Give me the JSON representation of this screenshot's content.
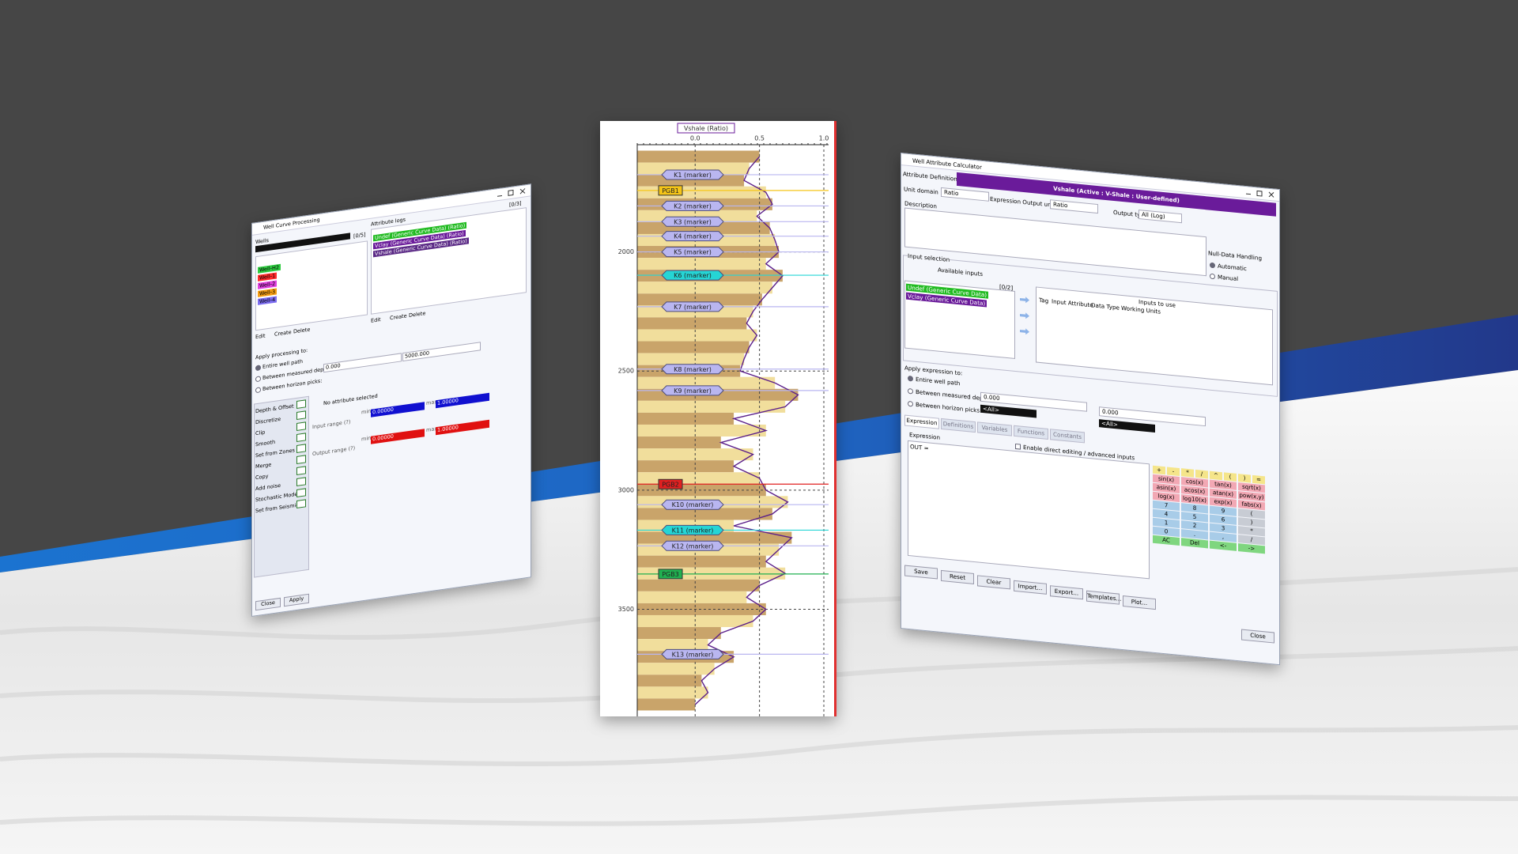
{
  "left_window": {
    "title": "Well Curve Processing",
    "wells_label": "Wells",
    "wells_count": "[0/5]",
    "wells": [
      {
        "name": "Well-H2",
        "color": "#2ecc40"
      },
      {
        "name": "Well-1",
        "color": "#ff2a2a"
      },
      {
        "name": "Well-2",
        "color": "#e040e0"
      },
      {
        "name": "Well-3",
        "color": "#f39c12"
      },
      {
        "name": "Well-4",
        "color": "#7b6cf0"
      }
    ],
    "logs_label": "Attribute logs",
    "logs_count": "[0/3]",
    "logs": [
      {
        "name": "Undef (Generic Curve Data) (Ratio)",
        "color": "#22bb22"
      },
      {
        "name": "Vclay (Generic Curve Data) (Ratio)",
        "color": "#6a1b9a"
      },
      {
        "name": "Vshale (Generic Curve Data) (Ratio)",
        "color": "#5b2a86"
      }
    ],
    "list_buttons": [
      "Edit",
      "Create",
      "Delete"
    ],
    "apply_label": "Apply processing to:",
    "options": [
      "Entire well path",
      "Between measured depths: (m)",
      "Between horizon picks:"
    ],
    "depth_from": "0.000",
    "depth_to": "5000.000",
    "operations": [
      "Depth & Offset",
      "Discretize",
      "Clip",
      "Smooth",
      "Set from Zones",
      "Merge",
      "Copy",
      "Add noise",
      "Stochastic Model",
      "Set from Seismic"
    ],
    "no_attribute": "No attribute selected",
    "input_range": "Input range (?)",
    "output_range": "Output range (?)",
    "min_label": "min",
    "max_label": "max",
    "min_value": "0.00000",
    "max_value": "1.00000",
    "footer": [
      "Close",
      "Apply"
    ]
  },
  "well_log": {
    "title": "Vshale (Ratio)",
    "xlim": [
      -0.45,
      1.0
    ],
    "xticks": [
      {
        "value": 0,
        "label": "0.0"
      },
      0.5,
      {
        "value": 1,
        "label": "1.0"
      }
    ],
    "ylim": [
      1550,
      3950
    ],
    "yticks": [
      2000,
      2500,
      3000,
      3500
    ],
    "fill_colors": [
      "#c9a46a",
      "#f1de9c"
    ],
    "line_color": "#5b1f8a",
    "depths": [
      1600,
      1650,
      1700,
      1750,
      1800,
      1850,
      1900,
      1950,
      2000,
      2050,
      2100,
      2150,
      2200,
      2250,
      2300,
      2350,
      2400,
      2450,
      2500,
      2550,
      2600,
      2650,
      2700,
      2750,
      2800,
      2850,
      2900,
      2950,
      3000,
      3050,
      3100,
      3150,
      3200,
      3250,
      3300,
      3350,
      3400,
      3450,
      3500,
      3550,
      3600,
      3650,
      3700,
      3750,
      3800,
      3850,
      3900
    ],
    "vshale": [
      0.5,
      0.42,
      0.38,
      0.55,
      0.6,
      0.48,
      0.58,
      0.62,
      0.65,
      0.55,
      0.68,
      0.6,
      0.52,
      0.45,
      0.4,
      0.48,
      0.42,
      0.38,
      0.35,
      0.62,
      0.8,
      0.7,
      0.3,
      0.55,
      0.2,
      0.45,
      0.3,
      0.5,
      0.55,
      0.72,
      0.6,
      0.3,
      0.75,
      0.65,
      0.55,
      0.7,
      0.5,
      0.4,
      0.55,
      0.45,
      0.2,
      0.1,
      0.3,
      0.15,
      0.05,
      0.1,
      0.0
    ],
    "markers": [
      {
        "name": "K1 (marker)",
        "depth": 1676,
        "color": "#b9b6f0"
      },
      {
        "name": "PGB1",
        "depth": 1742,
        "color": "#f5c518"
      },
      {
        "name": "K2 (marker)",
        "depth": 1807,
        "color": "#b9b6f0"
      },
      {
        "name": "K3 (marker)",
        "depth": 1873,
        "color": "#b9b6f0"
      },
      {
        "name": "K4 (marker)",
        "depth": 1934,
        "color": "#b9b6f0"
      },
      {
        "name": "K5 (marker)",
        "depth": 2000,
        "color": "#b9b6f0"
      },
      {
        "name": "K6 (marker)",
        "depth": 2098,
        "color": "#25d5d5"
      },
      {
        "name": "K7 (marker)",
        "depth": 2230,
        "color": "#b9b6f0"
      },
      {
        "name": "K8 (marker)",
        "depth": 2492,
        "color": "#b9b6f0"
      },
      {
        "name": "K9 (marker)",
        "depth": 2582,
        "color": "#b9b6f0"
      },
      {
        "name": "PGB2",
        "depth": 2975,
        "color": "#e02020"
      },
      {
        "name": "K10 (marker)",
        "depth": 3061,
        "color": "#b9b6f0"
      },
      {
        "name": "K11 (marker)",
        "depth": 3168,
        "color": "#25d5d5"
      },
      {
        "name": "K12 (marker)",
        "depth": 3234,
        "color": "#b9b6f0"
      },
      {
        "name": "PGB3",
        "depth": 3352,
        "color": "#20b050"
      },
      {
        "name": "K13 (marker)",
        "depth": 3689,
        "color": "#b9b6f0"
      }
    ]
  },
  "right_window": {
    "title": "Well Attribute Calculator",
    "tab": "Attribute Definition",
    "header": "Vshale (Active : V-Shale : User-defined)",
    "header_color": "#6a1b9a",
    "unit_domain_label": "Unit domain",
    "unit_domain": "Ratio",
    "output_units_label": "Expression Output units",
    "output_units": "Ratio",
    "output_type_label": "Output type",
    "output_type": "All (Log)",
    "description_label": "Description",
    "null_label": "Null-Data Handling",
    "null_options": [
      "Automatic",
      "Manual"
    ],
    "input_selection": "Input selection",
    "available_inputs": "Available inputs",
    "inputs_count": "[0/2]",
    "inputs": [
      {
        "name": "Undef (Generic Curve Data)",
        "color": "#22bb22"
      },
      {
        "name": "Vclay (Generic Curve Data)",
        "color": "#6a1b9a"
      }
    ],
    "inputs_to_use": "Inputs to use",
    "columns": [
      "Tag",
      "Input Attribute",
      "Data Type",
      "Working Units"
    ],
    "apply_label": "Apply expression to:",
    "options": [
      "Entire well path",
      "Between measured depths:",
      "Between horizon picks:"
    ],
    "depth_from": "0.000",
    "depth_to": "0.000",
    "all": "<All>",
    "tabs": [
      "Expression",
      "Definitions",
      "Variables",
      "Functions",
      "Constants"
    ],
    "expression_label": "Expression",
    "expression": "OUT = ",
    "direct_editing": "Enable direct editing / advanced inputs",
    "operator_keys": [
      "+",
      "-",
      "*",
      "/",
      "^",
      "(",
      ")",
      "="
    ],
    "function_keys": [
      "sin(x)",
      "cos(x)",
      "tan(x)",
      "sqrt(x)",
      "asin(x)",
      "acos(x)",
      "atan(x)",
      "pow(x,y)",
      "log(x)",
      "log10(x)",
      "exp(x)",
      "fabs(x)"
    ],
    "digit_keys": [
      "7",
      "8",
      "9",
      "4",
      "5",
      "6",
      "1",
      "2",
      "3",
      "0",
      ".",
      ","
    ],
    "side_keys": [
      "(",
      ")",
      "*",
      "/"
    ],
    "edit_keys": [
      "AC",
      "Del",
      "<-",
      "->"
    ],
    "buttons": [
      "Save",
      "Reset",
      "Clear",
      "Import...",
      "Export...",
      "Templates...",
      "Plot..."
    ],
    "close": "Close"
  }
}
